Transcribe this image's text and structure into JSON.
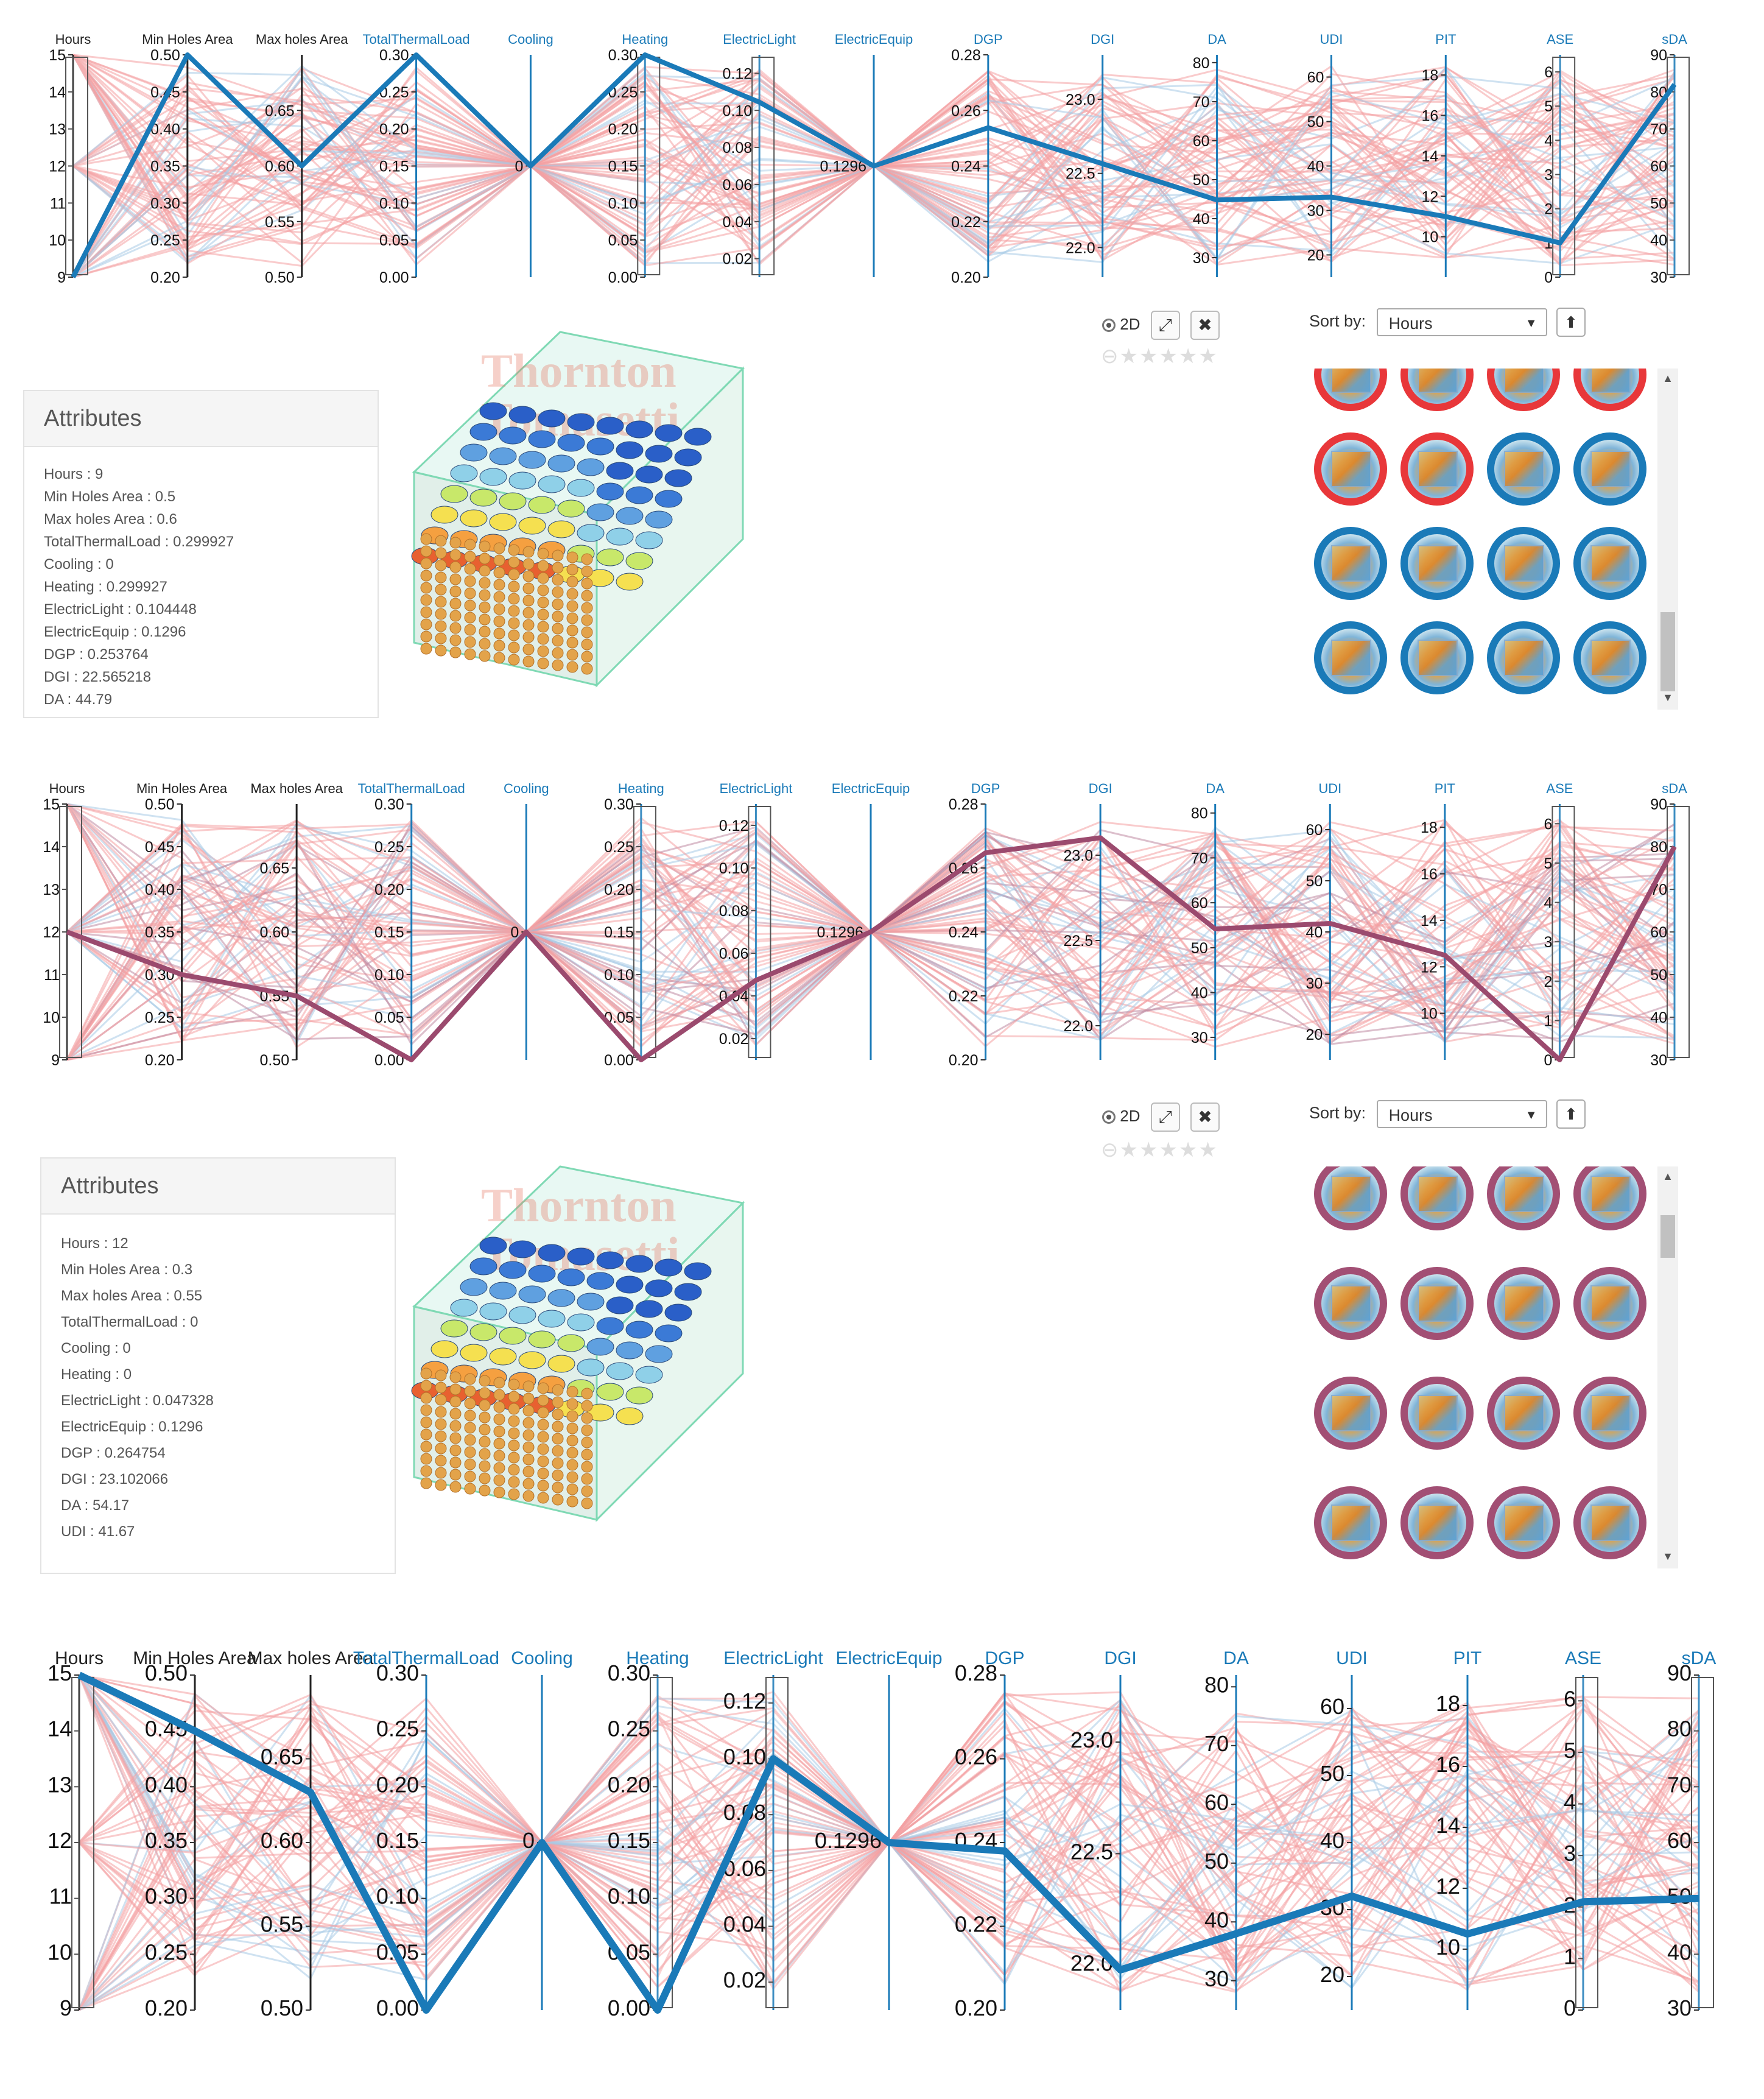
{
  "chart_data": [
    {
      "type": "parallel-coordinates",
      "axes": [
        {
          "name": "Hours",
          "ticks": [
            "15",
            "14",
            "13",
            "12",
            "11",
            "10",
            "9"
          ],
          "range": [
            9,
            15
          ],
          "brushed": true
        },
        {
          "name": "Min Holes Area",
          "ticks": [
            "0.50",
            "0.45",
            "0.40",
            "0.35",
            "0.30",
            "0.25",
            "0.20"
          ],
          "range": [
            0.2,
            0.5
          ]
        },
        {
          "name": "Max holes Area",
          "ticks": [
            "0.65",
            "0.60",
            "0.55",
            "0.50"
          ],
          "range": [
            0.5,
            0.7
          ]
        },
        {
          "name": "TotalThermalLoad",
          "ticks": [
            "0.30",
            "0.25",
            "0.20",
            "0.15",
            "0.10",
            "0.05",
            "0.00"
          ],
          "range": [
            0,
            0.3
          ]
        },
        {
          "name": "Cooling",
          "ticks": [
            "0"
          ],
          "range": [
            -1,
            1
          ]
        },
        {
          "name": "Heating",
          "ticks": [
            "0.30",
            "0.25",
            "0.20",
            "0.15",
            "0.10",
            "0.05",
            "0.00"
          ],
          "range": [
            0,
            0.3
          ],
          "brushed": true
        },
        {
          "name": "ElectricLight",
          "ticks": [
            "0.12",
            "0.10",
            "0.08",
            "0.06",
            "0.04",
            "0.02"
          ],
          "range": [
            0.01,
            0.13
          ],
          "brushed": true
        },
        {
          "name": "ElectricEquip",
          "ticks": [
            "0.1296"
          ],
          "range": [
            0.1196,
            0.1396
          ]
        },
        {
          "name": "DGP",
          "ticks": [
            "0.28",
            "0.26",
            "0.24",
            "0.22",
            "0.20"
          ],
          "range": [
            0.2,
            0.28
          ]
        },
        {
          "name": "DGI",
          "ticks": [
            "23.0",
            "22.5",
            "22.0"
          ],
          "range": [
            21.8,
            23.3
          ]
        },
        {
          "name": "DA",
          "ticks": [
            "80",
            "70",
            "60",
            "50",
            "40",
            "30"
          ],
          "range": [
            25,
            82
          ]
        },
        {
          "name": "UDI",
          "ticks": [
            "60",
            "50",
            "40",
            "30",
            "20"
          ],
          "range": [
            15,
            65
          ]
        },
        {
          "name": "PIT",
          "ticks": [
            "18",
            "16",
            "14",
            "12",
            "10"
          ],
          "range": [
            8,
            19
          ]
        },
        {
          "name": "ASE",
          "ticks": [
            "6",
            "5",
            "4",
            "3",
            "2",
            "1",
            "0"
          ],
          "range": [
            0,
            6.5
          ],
          "brushed": true
        },
        {
          "name": "sDA",
          "ticks": [
            "90",
            "80",
            "70",
            "60",
            "50",
            "40",
            "30"
          ],
          "range": [
            30,
            90
          ],
          "brushed": true
        }
      ],
      "highlighted": {
        "color": "#1a7ab8",
        "values": [
          9,
          0.5,
          0.6,
          0.299927,
          0,
          0.299927,
          0.104448,
          0.1296,
          0.253764,
          22.565218,
          44.79,
          33,
          11,
          1,
          82
        ]
      },
      "series_colors": {
        "background": "#f4a0a3",
        "secondary": "#a8cbe6"
      }
    },
    {
      "type": "parallel-coordinates",
      "axes_same_as_first": true,
      "highlighted": {
        "color": "#9b4a6e",
        "values": [
          12,
          0.3,
          0.55,
          0,
          0,
          0,
          0.047328,
          0.1296,
          0.264754,
          23.102066,
          54.17,
          41.67,
          12.5,
          0,
          80
        ]
      },
      "series_colors": {
        "background": "#f4a0a3",
        "secondary": "#a8cbe6",
        "tertiary": "#c08aa3"
      }
    },
    {
      "type": "parallel-coordinates",
      "axes_same_as_first": true,
      "highlighted": {
        "color": "#1a7ab8",
        "values": [
          15,
          0.45,
          0.63,
          0,
          0,
          0,
          0.1,
          0.1296,
          0.238,
          21.98,
          38,
          32,
          10.5,
          2.1,
          50
        ]
      },
      "series_colors": {
        "background": "#f4a0a3",
        "secondary": "#a8cbe6"
      }
    }
  ],
  "panel1": {
    "title": "Attributes",
    "rows": [
      "Hours : 9",
      "Min Holes Area : 0.5",
      "Max holes Area : 0.6",
      "TotalThermalLoad : 0.299927",
      "Cooling : 0",
      "Heating : 0.299927",
      "ElectricLight : 0.104448",
      "ElectricEquip : 0.1296",
      "DGP : 0.253764",
      "DGI : 22.565218",
      "DA : 44.79"
    ]
  },
  "panel2": {
    "title": "Attributes",
    "rows": [
      "Hours : 12",
      "Min Holes Area : 0.3",
      "Max holes Area : 0.55",
      "TotalThermalLoad : 0",
      "Cooling : 0",
      "Heating : 0",
      "ElectricLight : 0.047328",
      "ElectricEquip : 0.1296",
      "DGP : 0.264754",
      "DGI : 23.102066",
      "DA : 54.17",
      "UDI : 41.67"
    ]
  },
  "controls": {
    "view_label": "2D",
    "sort_label": "Sort by:",
    "sort_value": "Hours",
    "expand_icon": "⤢",
    "close_icon": "✖",
    "sort_dir_icon": "⬆"
  },
  "gallery1": {
    "rings": [
      "#e8373a",
      "#e8373a",
      "#e8373a",
      "#e8373a",
      "#e8373a",
      "#e8373a",
      "#1a7ab8",
      "#1a7ab8",
      "#1a7ab8",
      "#1a7ab8",
      "#1a7ab8",
      "#1a7ab8",
      "#1a7ab8",
      "#1a7ab8",
      "#1a7ab8",
      "#1a7ab8"
    ]
  },
  "gallery2": {
    "rings": [
      "#a24f74",
      "#a24f74",
      "#a24f74",
      "#a24f74",
      "#a24f74",
      "#a24f74",
      "#a24f74",
      "#a24f74",
      "#a24f74",
      "#a24f74",
      "#a24f74",
      "#a24f74",
      "#a24f74",
      "#a24f74",
      "#a24f74",
      "#a24f74"
    ]
  },
  "watermark": {
    "line1": "Thornton",
    "line2": "Tomasetti"
  }
}
